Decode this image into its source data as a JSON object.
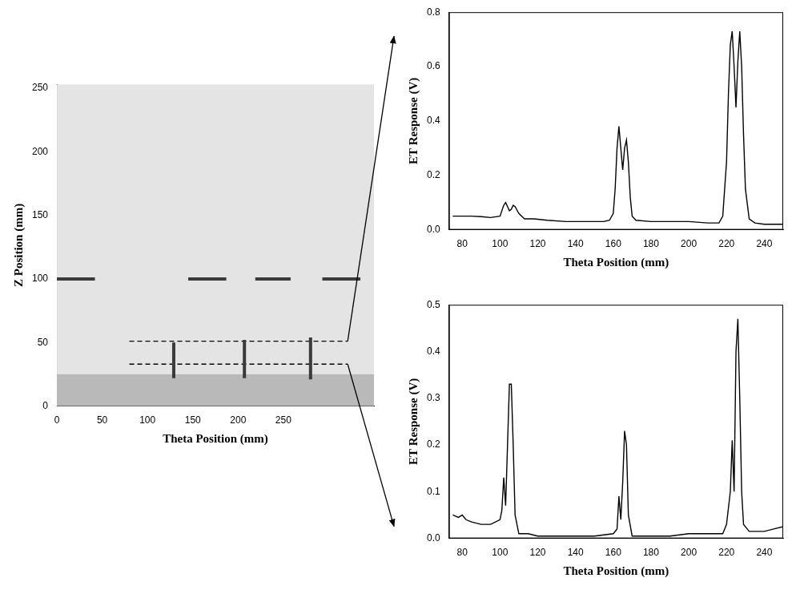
{
  "chart_data": [
    {
      "type": "scatter",
      "x_label": "Theta Position (mm)",
      "y_label": "Z Position (mm)",
      "xlim": [
        0,
        350
      ],
      "xticks": [
        0,
        50,
        100,
        150,
        200,
        250
      ],
      "ylim": [
        0,
        253
      ],
      "yticks": [
        0,
        50,
        100,
        150,
        200,
        250
      ],
      "grid": false,
      "band": [
        0,
        25
      ],
      "color": "#3a3a3a",
      "indications": [
        {
          "x": [
            0,
            42
          ],
          "y": [
            100,
            100
          ]
        },
        {
          "x": [
            145,
            187
          ],
          "y": [
            100,
            100
          ]
        },
        {
          "x": [
            219,
            258
          ],
          "y": [
            100,
            100
          ]
        },
        {
          "x": [
            293,
            335
          ],
          "y": [
            100,
            100
          ]
        },
        {
          "x": [
            129,
            129
          ],
          "y": [
            22,
            50
          ]
        },
        {
          "x": [
            207,
            207
          ],
          "y": [
            22,
            52
          ]
        },
        {
          "x": [
            280,
            280
          ],
          "y": [
            21,
            54
          ]
        }
      ],
      "scan_lines": [
        {
          "x": [
            80,
            321
          ],
          "y": [
            51,
            51
          ],
          "line_style": "dashed"
        },
        {
          "x": [
            80,
            321
          ],
          "y": [
            33,
            33
          ],
          "line_style": "dashed"
        }
      ]
    },
    {
      "type": "line",
      "x_label": "Theta Position (mm)",
      "y_label": "ET Response (V)",
      "xlim": [
        73,
        250
      ],
      "xticks": [
        80,
        100,
        120,
        140,
        160,
        180,
        200,
        220,
        240
      ],
      "ylim": [
        0,
        0.8
      ],
      "yticks": [
        {
          "value": 0,
          "label": "0.0"
        },
        {
          "value": 0.2,
          "label": "0.2"
        },
        {
          "value": 0.4,
          "label": "0.4"
        },
        {
          "value": 0.6,
          "label": "0.6"
        },
        {
          "value": 0.8,
          "label": "0.8"
        }
      ],
      "grid": false,
      "color": "#000000",
      "x": [
        75,
        80,
        85,
        90,
        95,
        100,
        102,
        103,
        104,
        105,
        106,
        107,
        108,
        110,
        113,
        118,
        125,
        135,
        145,
        155,
        158,
        160,
        161,
        162,
        163,
        164,
        165,
        166,
        167,
        168,
        169,
        170,
        172,
        180,
        190,
        200,
        210,
        216,
        218,
        220,
        221,
        222,
        223,
        224,
        225,
        226,
        227,
        228,
        229,
        230,
        232,
        235,
        240,
        245,
        250
      ],
      "values": [
        0.05,
        0.05,
        0.05,
        0.048,
        0.045,
        0.05,
        0.09,
        0.1,
        0.085,
        0.07,
        0.075,
        0.09,
        0.085,
        0.06,
        0.04,
        0.04,
        0.035,
        0.03,
        0.03,
        0.03,
        0.035,
        0.06,
        0.15,
        0.3,
        0.38,
        0.3,
        0.22,
        0.3,
        0.33,
        0.25,
        0.12,
        0.05,
        0.035,
        0.03,
        0.03,
        0.03,
        0.025,
        0.025,
        0.05,
        0.25,
        0.5,
        0.68,
        0.73,
        0.6,
        0.45,
        0.62,
        0.73,
        0.6,
        0.35,
        0.15,
        0.04,
        0.025,
        0.02,
        0.02,
        0.02
      ]
    },
    {
      "type": "line",
      "x_label": "Theta Position (mm)",
      "y_label": "ET Response (V)",
      "xlim": [
        73,
        250
      ],
      "xticks": [
        80,
        100,
        120,
        140,
        160,
        180,
        200,
        220,
        240
      ],
      "ylim": [
        0,
        0.5
      ],
      "yticks": [
        {
          "value": 0,
          "label": "0.0"
        },
        {
          "value": 0.1,
          "label": "0.1"
        },
        {
          "value": 0.2,
          "label": "0.2"
        },
        {
          "value": 0.3,
          "label": "0.3"
        },
        {
          "value": 0.4,
          "label": "0.4"
        },
        {
          "value": 0.5,
          "label": "0.5"
        }
      ],
      "grid": false,
      "color": "#000000",
      "x": [
        75,
        78,
        80,
        82,
        85,
        90,
        95,
        100,
        101,
        102,
        103,
        104,
        105,
        106,
        107,
        108,
        110,
        115,
        120,
        130,
        140,
        150,
        160,
        162,
        163,
        164,
        165,
        166,
        167,
        168,
        170,
        180,
        190,
        200,
        210,
        218,
        220,
        222,
        223,
        224,
        225,
        226,
        227,
        228,
        229,
        232,
        240,
        245,
        250
      ],
      "values": [
        0.05,
        0.045,
        0.05,
        0.04,
        0.035,
        0.03,
        0.03,
        0.04,
        0.06,
        0.13,
        0.07,
        0.2,
        0.33,
        0.33,
        0.2,
        0.05,
        0.01,
        0.01,
        0.005,
        0.005,
        0.005,
        0.005,
        0.01,
        0.02,
        0.09,
        0.04,
        0.12,
        0.23,
        0.2,
        0.05,
        0.005,
        0.005,
        0.005,
        0.01,
        0.01,
        0.01,
        0.03,
        0.1,
        0.21,
        0.1,
        0.4,
        0.47,
        0.3,
        0.1,
        0.03,
        0.015,
        0.015,
        0.02,
        0.025
      ]
    }
  ]
}
